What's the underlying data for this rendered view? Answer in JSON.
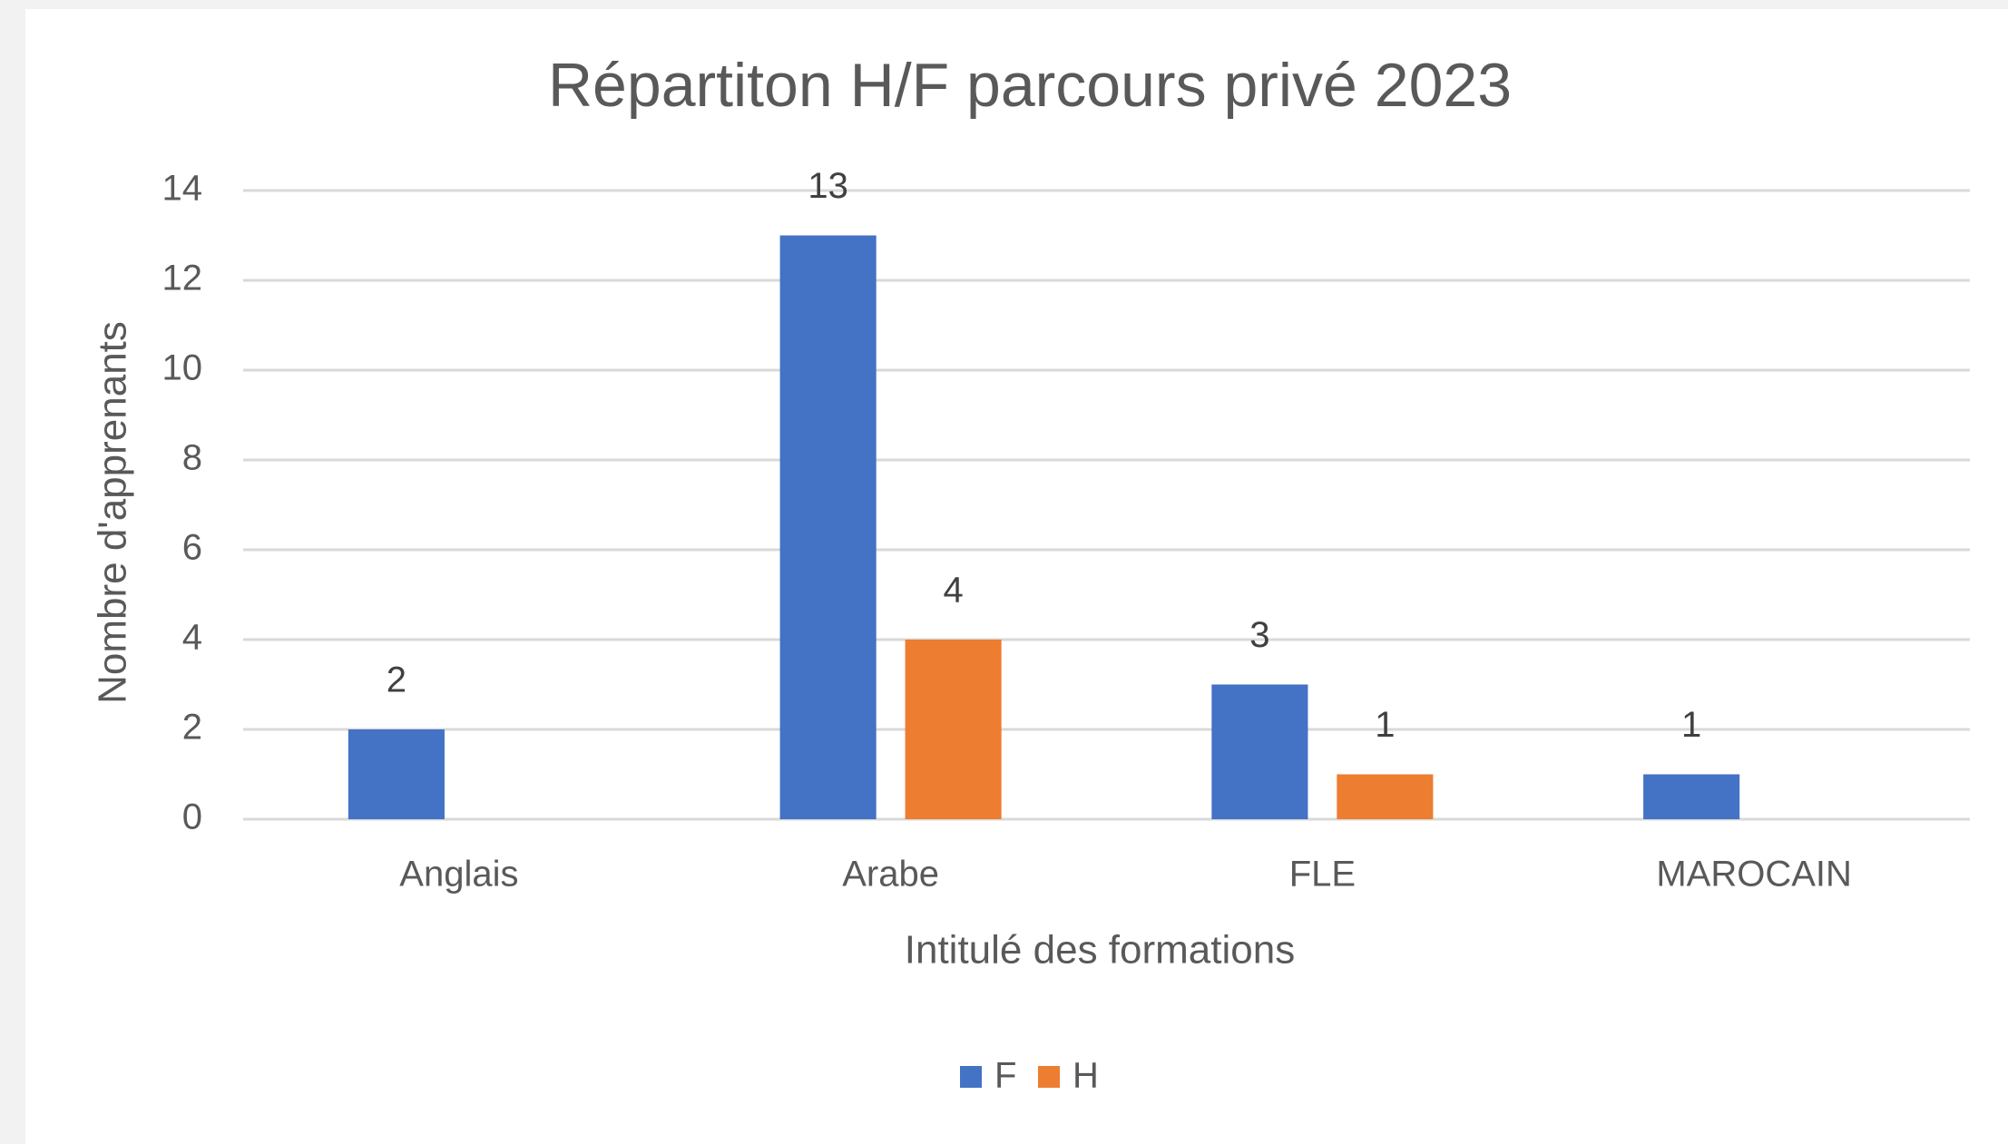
{
  "chart_data": {
    "type": "bar",
    "title": "Répartiton H/F parcours privé 2023",
    "x_label": "Intitulé des formations",
    "y_label": "Nombre d'apprenants",
    "categories": [
      "Anglais",
      "Arabe",
      "FLE",
      "MAROCAIN"
    ],
    "series": [
      {
        "name": "F",
        "color": "#4472c4",
        "values": [
          2,
          13,
          3,
          1
        ]
      },
      {
        "name": "H",
        "color": "#ed7d31",
        "values": [
          null,
          4,
          1,
          null
        ]
      }
    ],
    "ylim": [
      0,
      14
    ],
    "yticks": [
      0,
      2,
      4,
      6,
      8,
      10,
      12,
      14
    ],
    "grid": true,
    "legend": "bottom"
  }
}
